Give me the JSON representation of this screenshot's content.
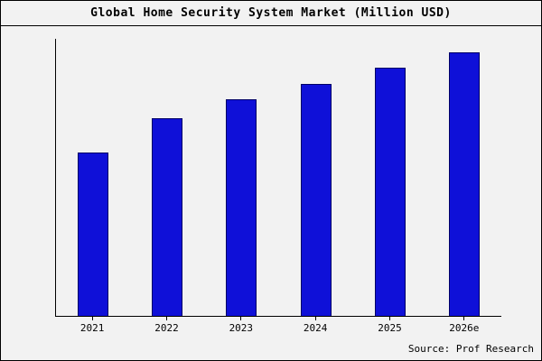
{
  "title": "Global Home Security System Market (Million USD)",
  "source": "Source: Prof Research",
  "colors": {
    "bar": "#0f10d8",
    "bar_border": "#000066",
    "axis": "#000000",
    "background": "#f2f2f2"
  },
  "chart_data": {
    "type": "bar",
    "title": "Global Home Security System Market (Million USD)",
    "categories": [
      "2021",
      "2022",
      "2023",
      "2024",
      "2025",
      "2026e"
    ],
    "values": [
      62,
      75,
      82,
      88,
      94,
      100
    ],
    "xlabel": "",
    "ylabel": "",
    "ylim": [
      0,
      105
    ],
    "grid": false,
    "legend": false,
    "y_axis_labels_visible": false,
    "source_annotation": "Source: Prof Research"
  }
}
